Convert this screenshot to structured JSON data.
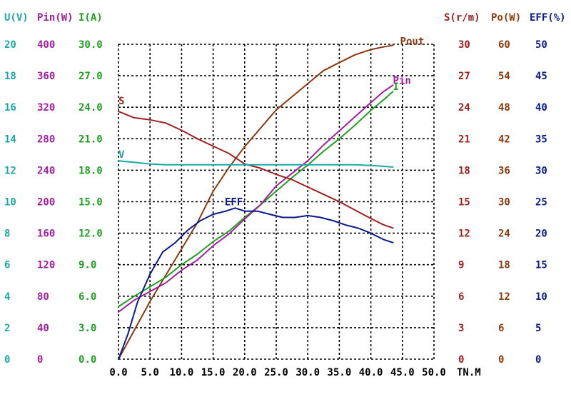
{
  "chart_data": {
    "type": "line",
    "title": "",
    "xlabel": "TN.M",
    "xlim": [
      0,
      50
    ],
    "x_ticks": [
      "0.0",
      "5.0",
      "10.0",
      "15.0",
      "20.0",
      "25.0",
      "30.0",
      "35.0",
      "40.0",
      "45.0",
      "50.0"
    ],
    "colors": {
      "U": "#1aa8a8",
      "Pin": "#a020a0",
      "I": "#20a020",
      "S": "#a02020",
      "Po": "#8b3a10",
      "EFF": "#0a1a8a"
    },
    "axes": [
      {
        "key": "U",
        "name": "U(V)",
        "side": "left",
        "min": 0,
        "max": 20,
        "ticks": [
          "0",
          "2",
          "4",
          "6",
          "8",
          "10",
          "12",
          "14",
          "16",
          "18",
          "20"
        ]
      },
      {
        "key": "Pin",
        "name": "Pin(W)",
        "side": "left",
        "min": 0,
        "max": 400,
        "ticks": [
          "0",
          "40",
          "80",
          "120",
          "160",
          "200",
          "240",
          "280",
          "320",
          "360",
          "400"
        ]
      },
      {
        "key": "I",
        "name": "I(A)",
        "side": "left",
        "min": 0,
        "max": 30,
        "ticks": [
          "0.0",
          "3.0",
          "6.0",
          "9.0",
          "12.0",
          "15.0",
          "18.0",
          "21.0",
          "24.0",
          "27.0",
          "30.0"
        ]
      },
      {
        "key": "S",
        "name": "S(r/m)",
        "side": "right",
        "min": 0,
        "max": 30,
        "ticks": [
          "0",
          "3",
          "6",
          "9",
          "12",
          "15",
          "18",
          "21",
          "24",
          "27",
          "30"
        ]
      },
      {
        "key": "Po",
        "name": "Po(W)",
        "side": "right",
        "min": 0,
        "max": 60,
        "ticks": [
          "0",
          "6",
          "12",
          "18",
          "24",
          "30",
          "36",
          "42",
          "48",
          "54",
          "60"
        ]
      },
      {
        "key": "EFF",
        "name": "EFF(%)",
        "side": "right",
        "min": 0,
        "max": 50,
        "ticks": [
          "0",
          "5",
          "10",
          "15",
          "20",
          "25",
          "30",
          "35",
          "40",
          "45",
          "50"
        ]
      }
    ],
    "series": [
      {
        "name": "Pout",
        "label": "Pout",
        "axis": "Po",
        "color": "#8b3a10",
        "x": [
          0,
          2.5,
          5,
          7.5,
          10,
          12.5,
          15,
          17.5,
          20,
          22.5,
          25,
          27.5,
          30,
          32.5,
          35,
          37.5,
          40,
          42,
          43.5
        ],
        "y": [
          0,
          5.5,
          11,
          16,
          21,
          26,
          32,
          36.5,
          40.5,
          44,
          47.5,
          50,
          52.5,
          55,
          56.5,
          58,
          59,
          59.5,
          59.8
        ]
      },
      {
        "name": "I",
        "label": "I",
        "axis": "I",
        "color": "#20a020",
        "x": [
          0,
          2.5,
          5,
          7.5,
          10,
          12.5,
          15,
          17.5,
          20,
          22.5,
          25,
          27.5,
          30,
          32.5,
          35,
          37.5,
          40,
          42,
          43.5
        ],
        "y": [
          5,
          6,
          6.9,
          7.8,
          9,
          10,
          11.2,
          12.2,
          13.5,
          14.7,
          16,
          17.3,
          18.5,
          19.8,
          21,
          22.3,
          23.7,
          24.7,
          25.5
        ]
      },
      {
        "name": "Pin",
        "label": "Pin",
        "axis": "Pin",
        "color": "#a020a0",
        "x": [
          0,
          2.5,
          5,
          7.5,
          10,
          12.5,
          15,
          17.5,
          20,
          22.5,
          25,
          27.5,
          30,
          32.5,
          35,
          37.5,
          40,
          42,
          43.5
        ],
        "y": [
          60,
          75,
          86,
          97,
          113,
          126,
          144,
          159,
          178,
          196,
          220,
          236,
          252,
          272,
          290,
          308,
          326,
          340,
          348
        ]
      },
      {
        "name": "S",
        "label": "S",
        "axis": "S",
        "color": "#a02020",
        "x": [
          0,
          2.5,
          5,
          7.5,
          10,
          12.5,
          15,
          17.5,
          20,
          22.5,
          25,
          27.5,
          30,
          32.5,
          35,
          37.5,
          40,
          42,
          43.5
        ],
        "y": [
          23.6,
          23,
          22.8,
          22.5,
          21.8,
          21,
          20.3,
          19.6,
          18.6,
          18.2,
          17.6,
          17.1,
          16.4,
          15.7,
          15,
          14.2,
          13.4,
          12.8,
          12.5
        ]
      },
      {
        "name": "V",
        "label": "V",
        "axis": "U",
        "color": "#1aa8a8",
        "x": [
          0,
          2.5,
          5,
          7.5,
          10,
          12.5,
          15,
          17.5,
          20,
          22.5,
          25,
          27.5,
          30,
          32.5,
          35,
          37.5,
          40,
          42,
          43.5
        ],
        "y": [
          12.6,
          12.5,
          12.4,
          12.35,
          12.35,
          12.35,
          12.35,
          12.35,
          12.35,
          12.35,
          12.35,
          12.35,
          12.35,
          12.35,
          12.35,
          12.35,
          12.3,
          12.25,
          12.2
        ]
      },
      {
        "name": "EFF",
        "label": "EFF",
        "axis": "EFF",
        "color": "#0a1a8a",
        "x": [
          0,
          1.5,
          3,
          5,
          7,
          9,
          11,
          13,
          15,
          17,
          18.5,
          20,
          22,
          24,
          26,
          28,
          30,
          32,
          34,
          36,
          38,
          40,
          42,
          43.5
        ],
        "y": [
          0,
          4,
          9,
          13.5,
          17,
          18.5,
          20.5,
          22,
          23,
          23.5,
          24,
          23.5,
          23.5,
          23,
          22.5,
          22.5,
          22.8,
          22.5,
          22,
          21.3,
          20.8,
          20,
          19,
          18.5
        ]
      }
    ]
  }
}
